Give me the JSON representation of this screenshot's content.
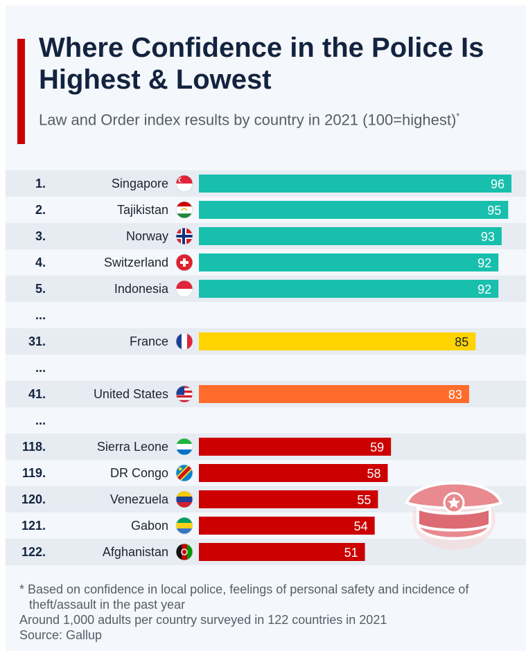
{
  "header": {
    "title": "Where Confidence in the Police Is Highest & Lowest",
    "subtitle": "Law and Order index results by country in 2021 (100=highest)",
    "subtitle_mark": "*"
  },
  "colors": {
    "accent": "#cc0000",
    "top": "#18bfad",
    "france": "#ffd400",
    "us": "#ff6b2b",
    "bottom": "#cc0000"
  },
  "chart_data": {
    "type": "bar",
    "orientation": "horizontal",
    "xlim": [
      0,
      100
    ],
    "rows": [
      {
        "rank": "1.",
        "country": "Singapore",
        "value": 96,
        "color": "#18bfad",
        "flag": "singapore-flag-icon"
      },
      {
        "rank": "2.",
        "country": "Tajikistan",
        "value": 95,
        "color": "#18bfad",
        "flag": "tajikistan-flag-icon"
      },
      {
        "rank": "3.",
        "country": "Norway",
        "value": 93,
        "color": "#18bfad",
        "flag": "norway-flag-icon"
      },
      {
        "rank": "4.",
        "country": "Switzerland",
        "value": 92,
        "color": "#18bfad",
        "flag": "switzerland-flag-icon"
      },
      {
        "rank": "5.",
        "country": "Indonesia",
        "value": 92,
        "color": "#18bfad",
        "flag": "indonesia-flag-icon"
      },
      {
        "gap": true,
        "rank": "..."
      },
      {
        "rank": "31.",
        "country": "France",
        "value": 85,
        "color": "#ffd400",
        "flag": "france-flag-icon",
        "label_dark": true
      },
      {
        "gap": true,
        "rank": "..."
      },
      {
        "rank": "41.",
        "country": "United States",
        "value": 83,
        "color": "#ff6b2b",
        "flag": "usa-flag-icon"
      },
      {
        "gap": true,
        "rank": "..."
      },
      {
        "rank": "118.",
        "country": "Sierra Leone",
        "value": 59,
        "color": "#cc0000",
        "flag": "sierra-leone-flag-icon"
      },
      {
        "rank": "119.",
        "country": "DR Congo",
        "value": 58,
        "color": "#cc0000",
        "flag": "dr-congo-flag-icon"
      },
      {
        "rank": "120.",
        "country": "Venezuela",
        "value": 55,
        "color": "#cc0000",
        "flag": "venezuela-flag-icon"
      },
      {
        "rank": "121.",
        "country": "Gabon",
        "value": 54,
        "color": "#cc0000",
        "flag": "gabon-flag-icon"
      },
      {
        "rank": "122.",
        "country": "Afghanistan",
        "value": 51,
        "color": "#cc0000",
        "flag": "afghanistan-flag-icon"
      }
    ]
  },
  "illustration": {
    "icon": "police-cap-icon"
  },
  "footnote": {
    "line1": "* Based on confidence in local police, feelings of personal safety and incidence of",
    "line2": "theft/assault in the past year",
    "line3": "Around 1,000 adults per country surveyed in 122 countries in 2021",
    "source": "Source: Gallup"
  }
}
